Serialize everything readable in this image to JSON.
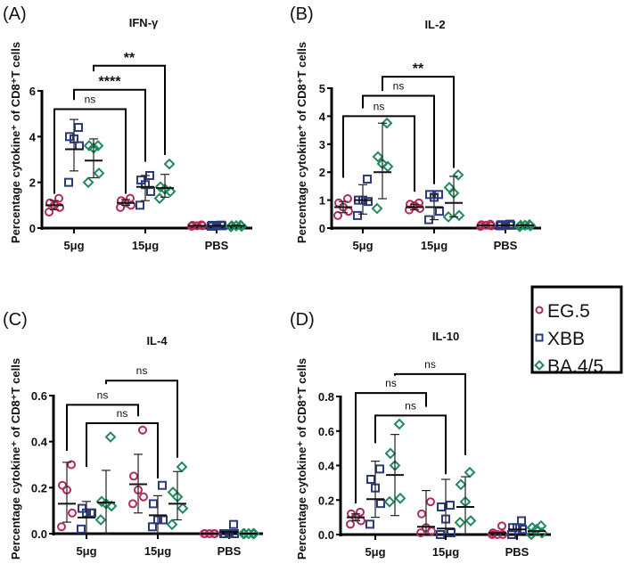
{
  "chart_data": {
    "type": "scatter",
    "y_axis_label": "Percentage cytokine⁺ of CD8⁺T cells",
    "categories": [
      "5μg",
      "15μg",
      "PBS"
    ],
    "legend": {
      "placement": "right-middle",
      "entries": [
        {
          "name": "EG.5",
          "marker": "circle",
          "color": "#b52a5b"
        },
        {
          "name": "XBB",
          "marker": "square",
          "color": "#2c3b7f"
        },
        {
          "name": "BA.4/5",
          "marker": "diamond",
          "color": "#1f8a5c"
        }
      ]
    },
    "panels": [
      {
        "label": "(A)",
        "title": "IFN-γ",
        "ylim": [
          0,
          6
        ],
        "yticks": [
          "0",
          "2",
          "4",
          "6"
        ],
        "ytick_values": [
          0,
          2,
          4,
          6
        ],
        "groups": [
          {
            "category": "5μg",
            "series": [
              {
                "name": "EG.5",
                "points": [
                  0.7,
                  0.9,
                  1.0,
                  1.1,
                  1.3
                ],
                "mean": 1.0,
                "err": [
                  0.8,
                  1.2
                ]
              },
              {
                "name": "XBB",
                "points": [
                  2.0,
                  3.6,
                  3.9,
                  4.0,
                  4.4
                ],
                "mean": 3.45,
                "err": [
                  2.5,
                  4.75
                ]
              },
              {
                "name": "BA.4/5",
                "points": [
                  2.0,
                  2.4,
                  3.5,
                  3.6,
                  3.6
                ],
                "mean": 2.95,
                "err": [
                  2.2,
                  3.9
                ]
              }
            ]
          },
          {
            "category": "15μg",
            "series": [
              {
                "name": "EG.5",
                "points": [
                  0.9,
                  1.0,
                  1.1,
                  1.2,
                  1.3
                ],
                "mean": 1.1,
                "err": [
                  1.0,
                  1.25
                ]
              },
              {
                "name": "XBB",
                "points": [
                  1.0,
                  1.6,
                  1.9,
                  2.1,
                  2.3
                ],
                "mean": 1.8,
                "err": [
                  1.2,
                  2.3
                ]
              },
              {
                "name": "BA.4/5",
                "points": [
                  1.3,
                  1.6,
                  1.7,
                  1.8,
                  2.8
                ],
                "mean": 1.75,
                "err": [
                  1.35,
                  2.35
                ]
              }
            ]
          },
          {
            "category": "PBS",
            "series": [
              {
                "name": "EG.5",
                "points": [
                  0.08,
                  0.1,
                  0.1,
                  0.12,
                  0.14
                ],
                "mean": 0.1,
                "err": [
                  0.1,
                  0.1
                ]
              },
              {
                "name": "XBB",
                "points": [
                  0.08,
                  0.1,
                  0.1,
                  0.12,
                  0.13
                ],
                "mean": 0.1,
                "err": [
                  0.1,
                  0.1
                ]
              },
              {
                "name": "BA.4/5",
                "points": [
                  0.06,
                  0.08,
                  0.1,
                  0.1,
                  0.12
                ],
                "mean": 0.1,
                "err": [
                  0.1,
                  0.1
                ]
              }
            ]
          }
        ],
        "comparisons": [
          {
            "series": "EG.5",
            "from": "5μg",
            "to": "15μg",
            "label": "ns",
            "top": 5.2,
            "left_end": 1.5,
            "right_end": 1.5
          },
          {
            "series": "XBB",
            "from": "5μg",
            "to": "15μg",
            "label": "****",
            "top": 6.05,
            "left_end": 5.6,
            "right_end": 2.9
          },
          {
            "series": "BA.4/5",
            "from": "5μg",
            "to": "15μg",
            "label": "**",
            "top": 7.1,
            "left_end": 6.85,
            "right_end": 3.2
          }
        ]
      },
      {
        "label": "(B)",
        "title": "IL-2",
        "ylim": [
          0,
          5
        ],
        "yticks": [
          "0",
          "1",
          "2",
          "3",
          "4",
          "5"
        ],
        "ytick_values": [
          0,
          1,
          2,
          3,
          4,
          5
        ],
        "groups": [
          {
            "category": "5μg",
            "series": [
              {
                "name": "EG.5",
                "points": [
                  0.45,
                  0.6,
                  0.75,
                  0.9,
                  1.05
                ],
                "mean": 0.75,
                "err": [
                  0.55,
                  0.95
                ]
              },
              {
                "name": "XBB",
                "points": [
                  0.45,
                  0.95,
                  1.0,
                  1.0,
                  1.75
                ],
                "mean": 1.0,
                "err": [
                  0.5,
                  1.55
                ]
              },
              {
                "name": "BA.4/5",
                "points": [
                  0.7,
                  2.2,
                  2.3,
                  2.55,
                  3.75
                ],
                "mean": 2.0,
                "err": [
                  1.05,
                  3.75
                ]
              }
            ]
          },
          {
            "category": "15μg",
            "series": [
              {
                "name": "EG.5",
                "points": [
                  0.65,
                  0.7,
                  0.8,
                  0.85,
                  0.9
                ],
                "mean": 0.75,
                "err": [
                  0.65,
                  0.85
                ]
              },
              {
                "name": "XBB",
                "points": [
                  0.3,
                  0.6,
                  1.1,
                  1.2,
                  1.2
                ],
                "mean": 0.75,
                "err": [
                  0.3,
                  1.2
                ]
              },
              {
                "name": "BA.4/5",
                "points": [
                  0.4,
                  0.45,
                  1.25,
                  1.45,
                  1.9
                ],
                "mean": 0.9,
                "err": [
                  0.4,
                  1.85
                ]
              }
            ]
          },
          {
            "category": "PBS",
            "series": [
              {
                "name": "EG.5",
                "points": [
                  0.06,
                  0.08,
                  0.1,
                  0.12,
                  0.14
                ],
                "mean": 0.1,
                "err": [
                  0.1,
                  0.1
                ]
              },
              {
                "name": "XBB",
                "points": [
                  0.08,
                  0.1,
                  0.1,
                  0.12,
                  0.14
                ],
                "mean": 0.1,
                "err": [
                  0.1,
                  0.1
                ]
              },
              {
                "name": "BA.4/5",
                "points": [
                  0.05,
                  0.08,
                  0.1,
                  0.1,
                  0.12
                ],
                "mean": 0.1,
                "err": [
                  0.1,
                  0.1
                ]
              }
            ]
          }
        ],
        "comparisons": [
          {
            "series": "EG.5",
            "from": "5μg",
            "to": "15μg",
            "label": "ns",
            "top": 4.0,
            "left_end": 1.8,
            "right_end": 1.3
          },
          {
            "series": "XBB",
            "from": "5μg",
            "to": "15μg",
            "label": "ns",
            "top": 4.73,
            "left_end": 4.28,
            "right_end": 1.57
          },
          {
            "series": "BA.4/5",
            "from": "5μg",
            "to": "15μg",
            "label": "**",
            "top": 5.41,
            "left_end": 4.9,
            "right_end": 2.15
          }
        ]
      },
      {
        "label": "(C)",
        "title": "IL-4",
        "ylim": [
          0,
          0.6
        ],
        "yticks": [
          "0.0",
          "0.2",
          "0.4",
          "0.6"
        ],
        "ytick_values": [
          0,
          0.2,
          0.4,
          0.6
        ],
        "groups": [
          {
            "category": "5μg",
            "series": [
              {
                "name": "EG.5",
                "points": [
                  0.03,
                  0.09,
                  0.19,
                  0.21,
                  0.3
                ],
                "mean": 0.13,
                "err": [
                  0.05,
                  0.31
                ]
              },
              {
                "name": "XBB",
                "points": [
                  0.02,
                  0.09,
                  0.09,
                  0.11,
                  0.09
                ],
                "mean": 0.07,
                "err": [
                  0.0,
                  0.14
                ]
              },
              {
                "name": "BA.4/5",
                "points": [
                  0.06,
                  0.12,
                  0.13,
                  0.14,
                  0.42
                ],
                "mean": 0.135,
                "err": [
                  0.0,
                  0.275
                ]
              }
            ]
          },
          {
            "category": "15μg",
            "series": [
              {
                "name": "EG.5",
                "points": [
                  0.13,
                  0.16,
                  0.19,
                  0.25,
                  0.45
                ],
                "mean": 0.215,
                "err": [
                  0.09,
                  0.345
                ]
              },
              {
                "name": "XBB",
                "points": [
                  0.03,
                  0.06,
                  0.06,
                  0.13,
                  0.21
                ],
                "mean": 0.08,
                "err": [
                  0.0,
                  0.165
                ]
              },
              {
                "name": "BA.4/5",
                "points": [
                  0.04,
                  0.11,
                  0.16,
                  0.18,
                  0.29
                ],
                "mean": 0.13,
                "err": [
                  0.06,
                  0.27
                ]
              }
            ]
          },
          {
            "category": "PBS",
            "series": [
              {
                "name": "EG.5",
                "points": [
                  0.0,
                  0.0,
                  0.0,
                  0.0,
                  0.0
                ],
                "mean": 0.0,
                "err": [
                  0.0,
                  0.0
                ]
              },
              {
                "name": "XBB",
                "points": [
                  0.0,
                  0.0,
                  0.0,
                  0.0,
                  0.04
                ],
                "mean": 0.008,
                "err": [
                  0.0,
                  0.0
                ]
              },
              {
                "name": "BA.4/5",
                "points": [
                  0.0,
                  0.0,
                  0.0,
                  0.0,
                  0.0
                ],
                "mean": 0.0,
                "err": [
                  0.0,
                  0.0
                ]
              }
            ]
          }
        ],
        "comparisons": [
          {
            "series": "EG.5",
            "from": "5μg",
            "to": "15μg",
            "label": "ns",
            "top": 0.56,
            "left_end": 0.36,
            "right_end": 0.51
          },
          {
            "series": "XBB",
            "from": "5μg",
            "to": "15μg",
            "label": "ns",
            "top": 0.48,
            "left_end": 0.29,
            "right_end": 0.24
          },
          {
            "series": "BA.4/5",
            "from": "5μg",
            "to": "15μg",
            "label": "ns",
            "top": 0.665,
            "left_end": 0.65,
            "right_end": 0.33
          }
        ]
      },
      {
        "label": "(D)",
        "title": "IL-10",
        "ylim": [
          0,
          0.8
        ],
        "yticks": [
          "0.0",
          "0.2",
          "0.4",
          "0.6",
          "0.8"
        ],
        "ytick_values": [
          0,
          0.2,
          0.4,
          0.6,
          0.8
        ],
        "groups": [
          {
            "category": "5μg",
            "series": [
              {
                "name": "EG.5",
                "points": [
                  0.06,
                  0.08,
                  0.1,
                  0.12,
                  0.13
                ],
                "mean": 0.1,
                "err": [
                  0.08,
                  0.12
                ]
              },
              {
                "name": "XBB",
                "points": [
                  0.06,
                  0.18,
                  0.27,
                  0.32,
                  0.38
                ],
                "mean": 0.205,
                "err": [
                  0.1,
                  0.425
                ]
              },
              {
                "name": "BA.4/5",
                "points": [
                  0.19,
                  0.21,
                  0.4,
                  0.47,
                  0.64
                ],
                "mean": 0.345,
                "err": [
                  0.11,
                  0.58
                ]
              }
            ]
          },
          {
            "category": "15μg",
            "series": [
              {
                "name": "EG.5",
                "points": [
                  0.01,
                  0.02,
                  0.04,
                  0.12,
                  0.19
                ],
                "mean": 0.045,
                "err": [
                  0.0,
                  0.255
                ]
              },
              {
                "name": "XBB",
                "points": [
                  0.0,
                  0.01,
                  0.09,
                  0.16,
                  0.17
                ],
                "mean": 0.035,
                "err": [
                  0.0,
                  0.32
                ]
              },
              {
                "name": "BA.4/5",
                "points": [
                  0.07,
                  0.08,
                  0.19,
                  0.29,
                  0.36
                ],
                "mean": 0.16,
                "err": [
                  0.0,
                  0.335
                ]
              }
            ]
          },
          {
            "category": "PBS",
            "series": [
              {
                "name": "EG.5",
                "points": [
                  0.0,
                  0.0,
                  0.0,
                  0.01,
                  0.05
                ],
                "mean": 0.01,
                "err": [
                  0.0,
                  0.0
                ]
              },
              {
                "name": "XBB",
                "points": [
                  0.0,
                  0.03,
                  0.04,
                  0.04,
                  0.08
                ],
                "mean": 0.03,
                "err": [
                  0.0,
                  0.0
                ]
              },
              {
                "name": "BA.4/5",
                "points": [
                  0.0,
                  0.01,
                  0.03,
                  0.04,
                  0.05
                ],
                "mean": 0.02,
                "err": [
                  0.0,
                  0.0
                ]
              }
            ]
          }
        ],
        "comparisons": [
          {
            "series": "EG.5",
            "from": "5μg",
            "to": "15μg",
            "label": "ns",
            "top": 0.82,
            "left_end": 0.18,
            "right_end": 0.74
          },
          {
            "series": "XBB",
            "from": "5μg",
            "to": "15μg",
            "label": "ns",
            "top": 0.69,
            "left_end": 0.53,
            "right_end": 0.35
          },
          {
            "series": "BA.4/5",
            "from": "5μg",
            "to": "15μg",
            "label": "ns",
            "top": 0.93,
            "left_end": 0.92,
            "right_end": 0.46
          }
        ]
      }
    ]
  }
}
